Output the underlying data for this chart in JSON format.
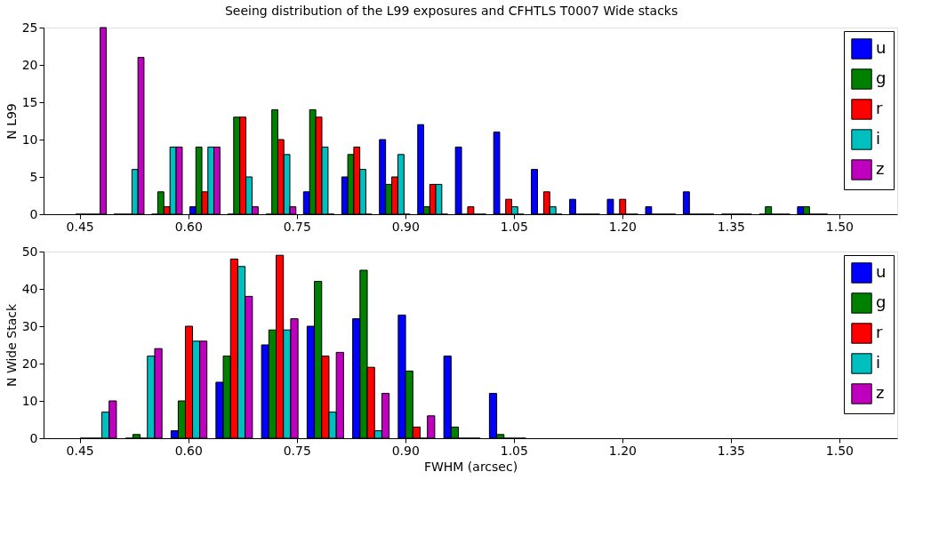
{
  "chart_data": [
    {
      "type": "histogram",
      "title": "Seeing distribution of the L99 exposures and CFHTLS T0007 Wide stacks",
      "ylabel": "N L99",
      "bins": [
        0.439,
        0.492,
        0.544,
        0.597,
        0.649,
        0.702,
        0.754,
        0.807,
        0.859,
        0.912,
        0.964,
        1.017,
        1.069,
        1.122,
        1.174,
        1.227,
        1.279,
        1.332,
        1.384,
        1.437,
        1.489
      ],
      "series": [
        {
          "name": "u",
          "color": "#0000ff",
          "values": [
            0,
            0,
            0,
            1,
            0,
            0,
            3,
            5,
            10,
            12,
            9,
            11,
            6,
            2,
            2,
            1,
            3,
            0,
            0,
            1
          ]
        },
        {
          "name": "g",
          "color": "#008000",
          "values": [
            0,
            0,
            3,
            9,
            13,
            14,
            14,
            8,
            4,
            1,
            0,
            0,
            0,
            0,
            0,
            0,
            0,
            0,
            1,
            1
          ]
        },
        {
          "name": "r",
          "color": "#ff0000",
          "values": [
            0,
            0,
            1,
            3,
            13,
            10,
            13,
            9,
            5,
            4,
            1,
            2,
            3,
            0,
            2,
            0,
            0,
            0,
            0,
            0
          ]
        },
        {
          "name": "i",
          "color": "#00bfbf",
          "values": [
            0,
            6,
            9,
            9,
            5,
            8,
            9,
            6,
            8,
            4,
            0,
            1,
            1,
            0,
            0,
            0,
            0,
            0,
            0,
            0
          ]
        },
        {
          "name": "z",
          "color": "#bf00bf",
          "values": [
            25,
            21,
            9,
            9,
            1,
            1,
            0,
            0,
            0,
            0,
            0,
            0,
            0,
            0,
            0,
            0,
            0,
            0,
            0,
            0
          ]
        }
      ],
      "xlim": [
        0.4,
        1.58
      ],
      "xticks": [
        {
          "value": 0.45,
          "label": "0.45"
        },
        {
          "value": 0.6,
          "label": "0.60"
        },
        {
          "value": 0.75,
          "label": "0.75"
        },
        {
          "value": 0.9,
          "label": "0.90"
        },
        {
          "value": 1.05,
          "label": "1.05"
        },
        {
          "value": 1.2,
          "label": "1.20"
        },
        {
          "value": 1.35,
          "label": "1.35"
        },
        {
          "value": 1.5,
          "label": "1.50"
        }
      ],
      "ylim": [
        0,
        25
      ],
      "yticks": [
        0,
        5,
        10,
        15,
        20,
        25
      ],
      "legend": "top right",
      "grid": false
    },
    {
      "type": "histogram",
      "xlabel": "FWHM (arcsec)",
      "ylabel": "N Wide Stack",
      "bins": [
        0.444,
        0.507,
        0.57,
        0.632,
        0.695,
        0.758,
        0.821,
        0.884,
        0.947,
        1.01,
        1.073
      ],
      "series": [
        {
          "name": "u",
          "color": "#0000ff",
          "values": [
            0,
            0,
            2,
            15,
            25,
            30,
            32,
            33,
            22,
            12
          ]
        },
        {
          "name": "g",
          "color": "#008000",
          "values": [
            0,
            1,
            10,
            22,
            29,
            42,
            45,
            18,
            3,
            1
          ]
        },
        {
          "name": "r",
          "color": "#ff0000",
          "values": [
            0,
            0,
            30,
            48,
            49,
            22,
            19,
            3,
            0,
            0
          ]
        },
        {
          "name": "i",
          "color": "#00bfbf",
          "values": [
            7,
            22,
            26,
            46,
            29,
            7,
            2,
            0,
            0,
            0
          ]
        },
        {
          "name": "z",
          "color": "#bf00bf",
          "values": [
            10,
            24,
            26,
            38,
            32,
            23,
            12,
            6,
            0,
            0
          ]
        }
      ],
      "xlim": [
        0.4,
        1.58
      ],
      "xticks": [
        {
          "value": 0.45,
          "label": "0.45"
        },
        {
          "value": 0.6,
          "label": "0.60"
        },
        {
          "value": 0.75,
          "label": "0.75"
        },
        {
          "value": 0.9,
          "label": "0.90"
        },
        {
          "value": 1.05,
          "label": "1.05"
        },
        {
          "value": 1.2,
          "label": "1.20"
        },
        {
          "value": 1.35,
          "label": "1.35"
        },
        {
          "value": 1.5,
          "label": "1.50"
        }
      ],
      "ylim": [
        0,
        50
      ],
      "yticks": [
        0,
        10,
        20,
        30,
        40,
        50
      ],
      "legend": "top right",
      "grid": false
    }
  ]
}
